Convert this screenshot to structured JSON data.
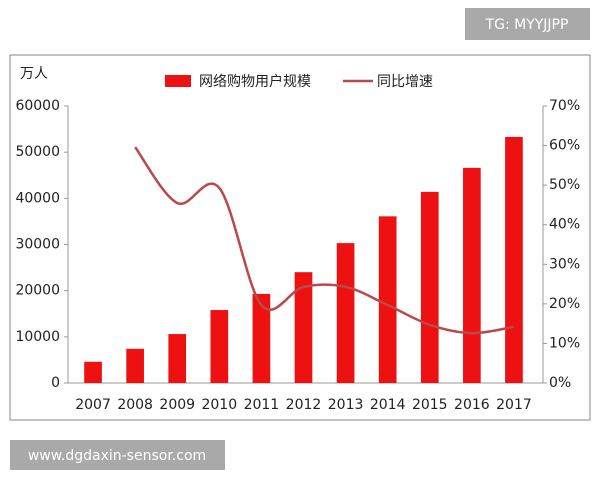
{
  "chart_data": {
    "type": "bar_line",
    "y_unit_label": "万人",
    "categories": [
      "2007",
      "2008",
      "2009",
      "2010",
      "2011",
      "2012",
      "2013",
      "2014",
      "2015",
      "2016",
      "2017"
    ],
    "series": [
      {
        "name": "网络购物用户规模",
        "color": "#ee1111",
        "type": "bar",
        "values": [
          4600,
          7400,
          10600,
          15800,
          19300,
          24000,
          30300,
          36100,
          41400,
          46600,
          53300
        ]
      },
      {
        "name": "同比增速",
        "color": "#b84a4a",
        "type": "line",
        "axis": "y2",
        "values": [
          null,
          59.6,
          45.5,
          49.3,
          19.7,
          24.3,
          24.3,
          19.7,
          14.7,
          12.6,
          14.2
        ]
      }
    ],
    "ylim": [
      0,
      60000
    ],
    "yticks": [
      0,
      10000,
      20000,
      30000,
      40000,
      50000,
      60000
    ],
    "y2lim": [
      0,
      70
    ],
    "y2ticks": [
      {
        "value": 0,
        "label": "0%"
      },
      {
        "value": 10,
        "label": "10%"
      },
      {
        "value": 20,
        "label": "20%"
      },
      {
        "value": 30,
        "label": "30%"
      },
      {
        "value": 40,
        "label": "40%"
      },
      {
        "value": 50,
        "label": "50%"
      },
      {
        "value": 60,
        "label": "60%"
      },
      {
        "value": 70,
        "label": "70%"
      }
    ],
    "grid": false
  },
  "watermarks": {
    "top": "TG: MYYJJPP",
    "bottom": "www.dgdaxin-sensor.com"
  }
}
